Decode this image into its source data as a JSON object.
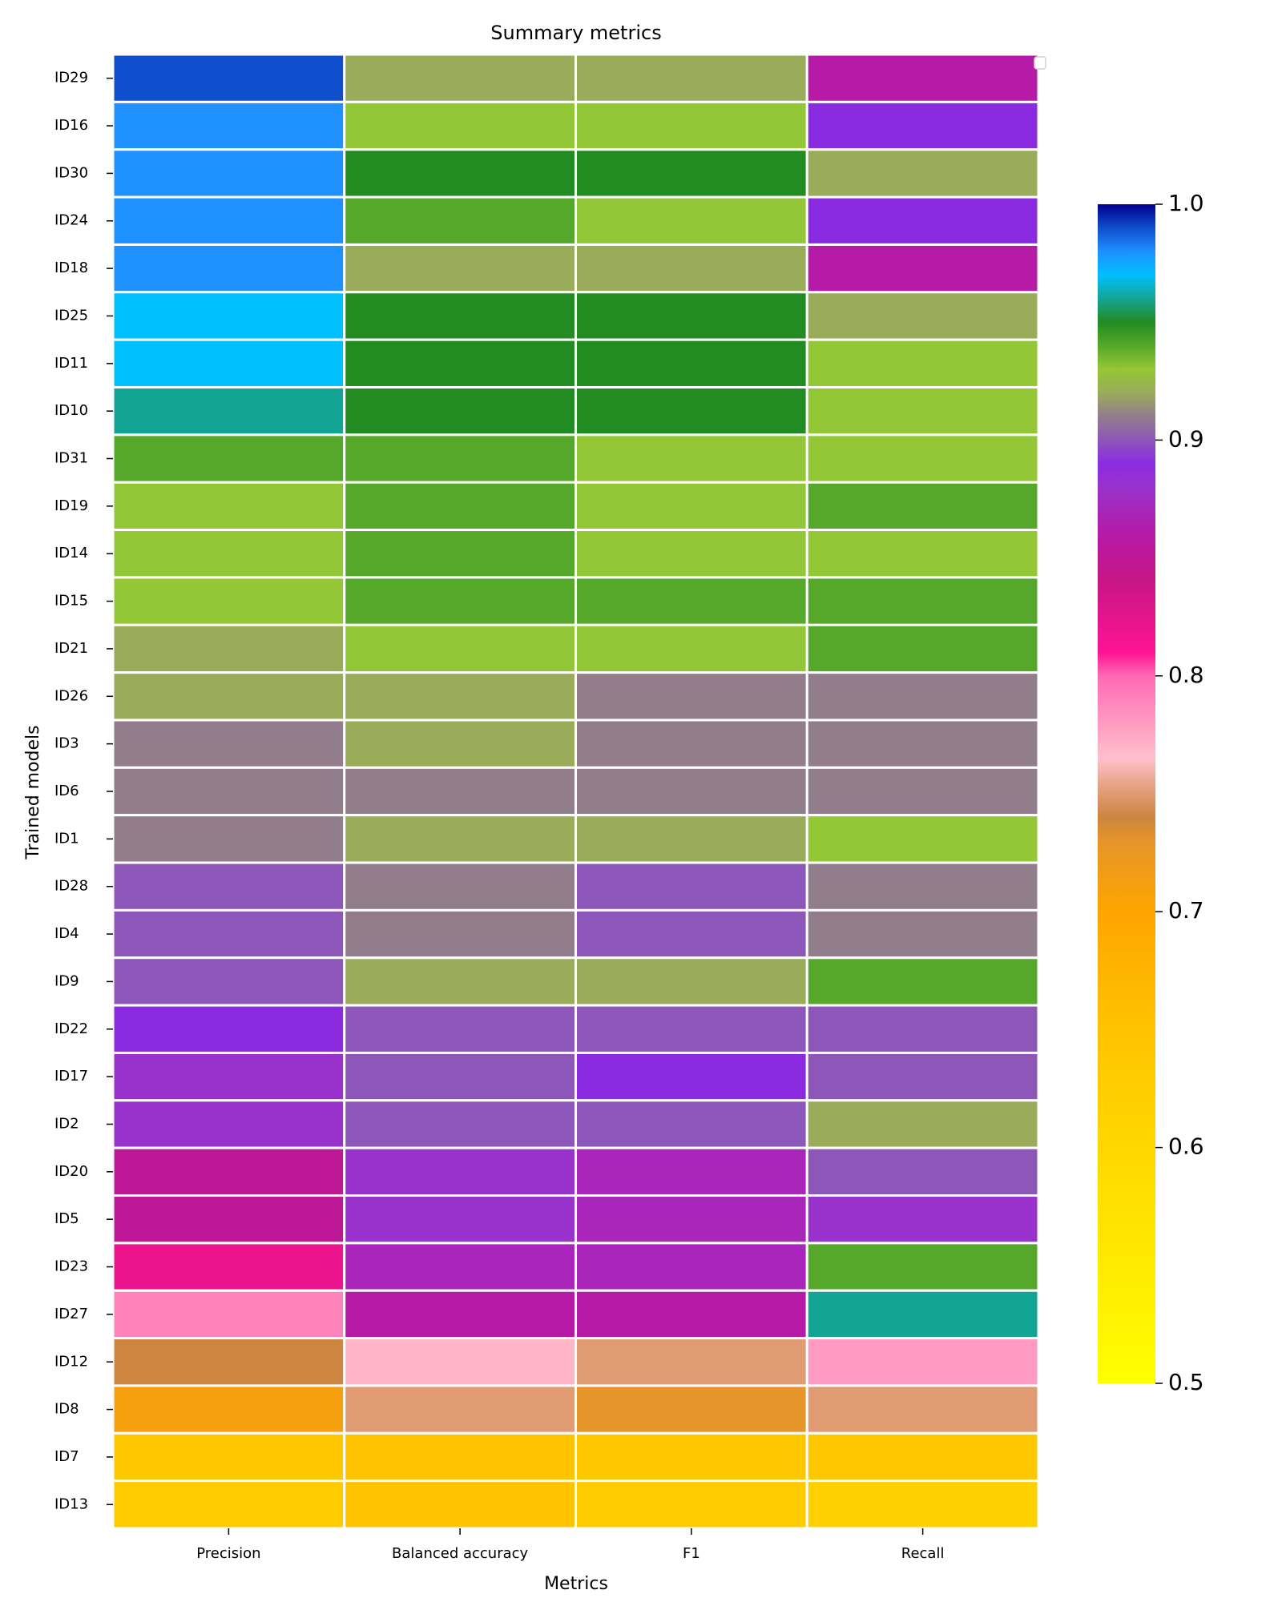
{
  "chart_data": {
    "type": "heatmap",
    "title": "Summary metrics",
    "xlabel": "Metrics",
    "ylabel": "Trained models",
    "columns": [
      "Precision",
      "Balanced accuracy",
      "F1",
      "Recall"
    ],
    "rows": [
      "ID29",
      "ID16",
      "ID30",
      "ID24",
      "ID18",
      "ID25",
      "ID11",
      "ID10",
      "ID31",
      "ID19",
      "ID14",
      "ID15",
      "ID21",
      "ID26",
      "ID3",
      "ID6",
      "ID1",
      "ID28",
      "ID4",
      "ID9",
      "ID22",
      "ID17",
      "ID2",
      "ID20",
      "ID5",
      "ID23",
      "ID27",
      "ID12",
      "ID8",
      "ID7",
      "ID13"
    ],
    "values": [
      [
        0.99,
        0.92,
        0.92,
        0.86
      ],
      [
        0.98,
        0.93,
        0.93,
        0.89
      ],
      [
        0.98,
        0.95,
        0.95,
        0.92
      ],
      [
        0.98,
        0.94,
        0.93,
        0.89
      ],
      [
        0.98,
        0.92,
        0.92,
        0.86
      ],
      [
        0.97,
        0.95,
        0.95,
        0.92
      ],
      [
        0.97,
        0.95,
        0.95,
        0.93
      ],
      [
        0.96,
        0.95,
        0.95,
        0.93
      ],
      [
        0.94,
        0.94,
        0.93,
        0.93
      ],
      [
        0.93,
        0.94,
        0.93,
        0.94
      ],
      [
        0.93,
        0.94,
        0.93,
        0.93
      ],
      [
        0.93,
        0.94,
        0.94,
        0.94
      ],
      [
        0.92,
        0.93,
        0.93,
        0.94
      ],
      [
        0.92,
        0.92,
        0.91,
        0.91
      ],
      [
        0.91,
        0.92,
        0.91,
        0.91
      ],
      [
        0.91,
        0.91,
        0.91,
        0.91
      ],
      [
        0.91,
        0.92,
        0.92,
        0.93
      ],
      [
        0.9,
        0.91,
        0.9,
        0.91
      ],
      [
        0.9,
        0.91,
        0.9,
        0.91
      ],
      [
        0.9,
        0.92,
        0.92,
        0.94
      ],
      [
        0.89,
        0.9,
        0.9,
        0.9
      ],
      [
        0.88,
        0.9,
        0.89,
        0.9
      ],
      [
        0.88,
        0.9,
        0.9,
        0.92
      ],
      [
        0.85,
        0.88,
        0.87,
        0.9
      ],
      [
        0.85,
        0.88,
        0.87,
        0.88
      ],
      [
        0.82,
        0.87,
        0.87,
        0.94
      ],
      [
        0.79,
        0.86,
        0.86,
        0.96
      ],
      [
        0.74,
        0.77,
        0.75,
        0.78
      ],
      [
        0.71,
        0.75,
        0.73,
        0.75
      ],
      [
        0.64,
        0.65,
        0.64,
        0.64
      ],
      [
        0.63,
        0.65,
        0.63,
        0.62
      ]
    ],
    "colorbar": {
      "range": [
        0.5,
        1.0
      ],
      "ticks": [
        "0.5",
        "0.6",
        "0.7",
        "0.8",
        "0.9",
        "1.0"
      ]
    },
    "colormap": [
      [
        0.5,
        "#ffff00"
      ],
      [
        0.55,
        "#ffea00"
      ],
      [
        0.6,
        "#ffd700"
      ],
      [
        0.65,
        "#ffc300"
      ],
      [
        0.7,
        "#ffa500"
      ],
      [
        0.73,
        "#e5952a"
      ],
      [
        0.74,
        "#cd853f"
      ],
      [
        0.755,
        "#e9a68c"
      ],
      [
        0.765,
        "#ffc0cb"
      ],
      [
        0.785,
        "#ff8fbf"
      ],
      [
        0.8,
        "#ff69b4"
      ],
      [
        0.81,
        "#ff1493"
      ],
      [
        0.84,
        "#c71585"
      ],
      [
        0.86,
        "#b61aa6"
      ],
      [
        0.88,
        "#9932cc"
      ],
      [
        0.89,
        "#8a2be2"
      ],
      [
        0.9,
        "#8d56b9"
      ],
      [
        0.91,
        "#927d8c"
      ],
      [
        0.92,
        "#9aab5a"
      ],
      [
        0.93,
        "#94c735"
      ],
      [
        0.94,
        "#55a82a"
      ],
      [
        0.95,
        "#228b22"
      ],
      [
        0.96,
        "#13a594"
      ],
      [
        0.97,
        "#00bfff"
      ],
      [
        0.98,
        "#1e90ff"
      ],
      [
        0.99,
        "#0f4ecc"
      ],
      [
        1.0,
        "#00008b"
      ]
    ]
  }
}
